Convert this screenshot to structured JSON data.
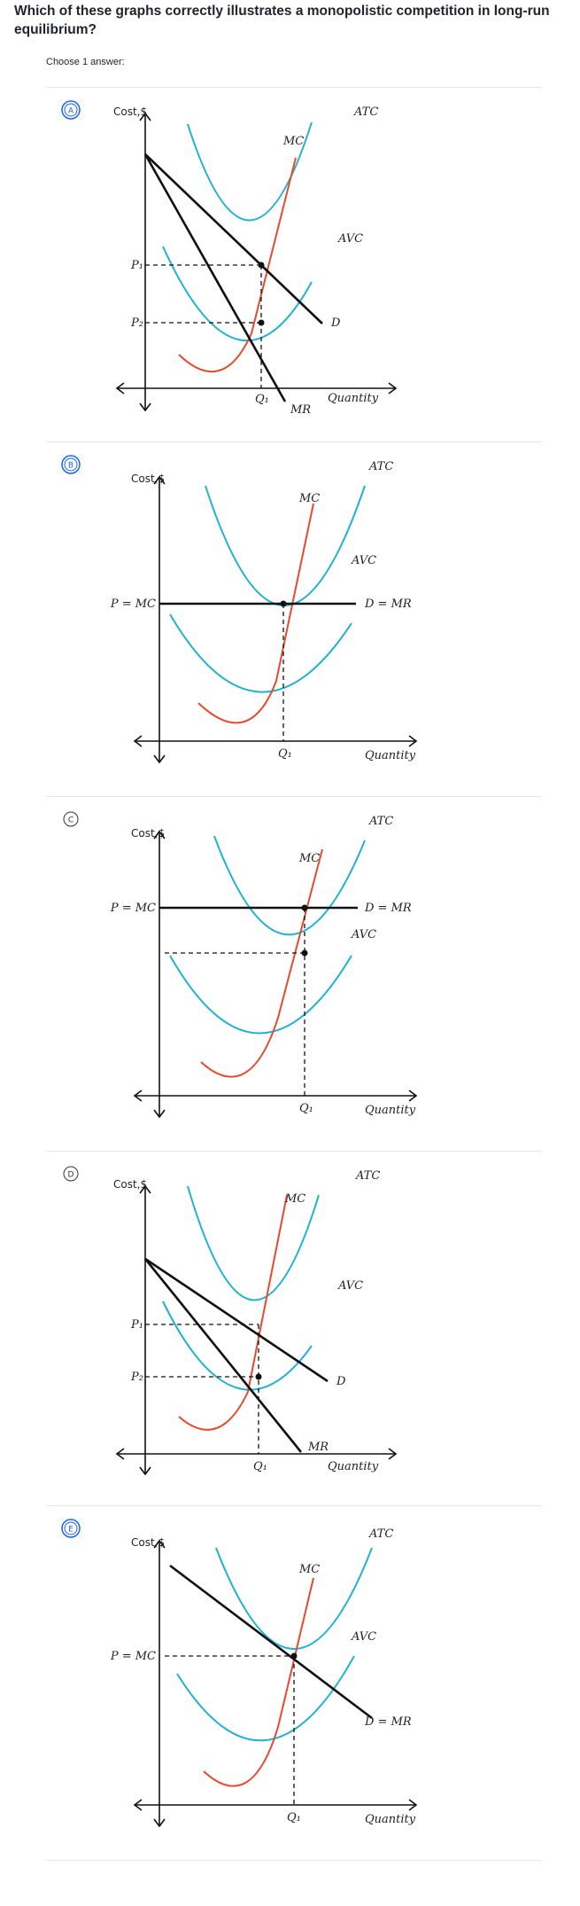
{
  "question": {
    "text": "Which of these graphs correctly illustrates a monopolistic competition in long-run equilibrium?",
    "instruction": "Choose 1 answer:"
  },
  "colors": {
    "mc": "#e64a2e",
    "atc_avc": "#1fb3cf",
    "line": "#111111",
    "selected": "#1865f2"
  },
  "options": [
    {
      "letter": "A",
      "labels": {
        "cost": "Cost,$",
        "mc": "MC",
        "atc": "ATC",
        "avc": "AVC",
        "d": "D",
        "mr": "MR",
        "quantity": "Quantity",
        "q": "Q₁",
        "p1": "P₁",
        "p2": "P₂"
      }
    },
    {
      "letter": "B",
      "labels": {
        "cost": "Cost,$",
        "mc": "MC",
        "atc": "ATC",
        "avc": "AVC",
        "d": "D = MR",
        "p": "P = MC",
        "quantity": "Quantity",
        "q": "Q₁"
      }
    },
    {
      "letter": "C",
      "labels": {
        "cost": "Cost,$",
        "mc": "MC",
        "atc": "ATC",
        "avc": "AVC",
        "d": "D = MR",
        "p": "P = MC",
        "quantity": "Quantity",
        "q": "Q₁"
      }
    },
    {
      "letter": "D",
      "labels": {
        "cost": "Cost,$",
        "mc": "MC",
        "atc": "ATC",
        "avc": "AVC",
        "d": "D",
        "mr": "MR",
        "quantity": "Quantity",
        "q": "Q₁",
        "p1": "P₁",
        "p2": "P₂"
      }
    },
    {
      "letter": "E",
      "labels": {
        "cost": "Cost,$",
        "mc": "MC",
        "atc": "ATC",
        "avc": "AVC",
        "d": "D = MR",
        "p": "P = MC",
        "quantity": "Quantity",
        "q": "Q₁"
      }
    }
  ]
}
